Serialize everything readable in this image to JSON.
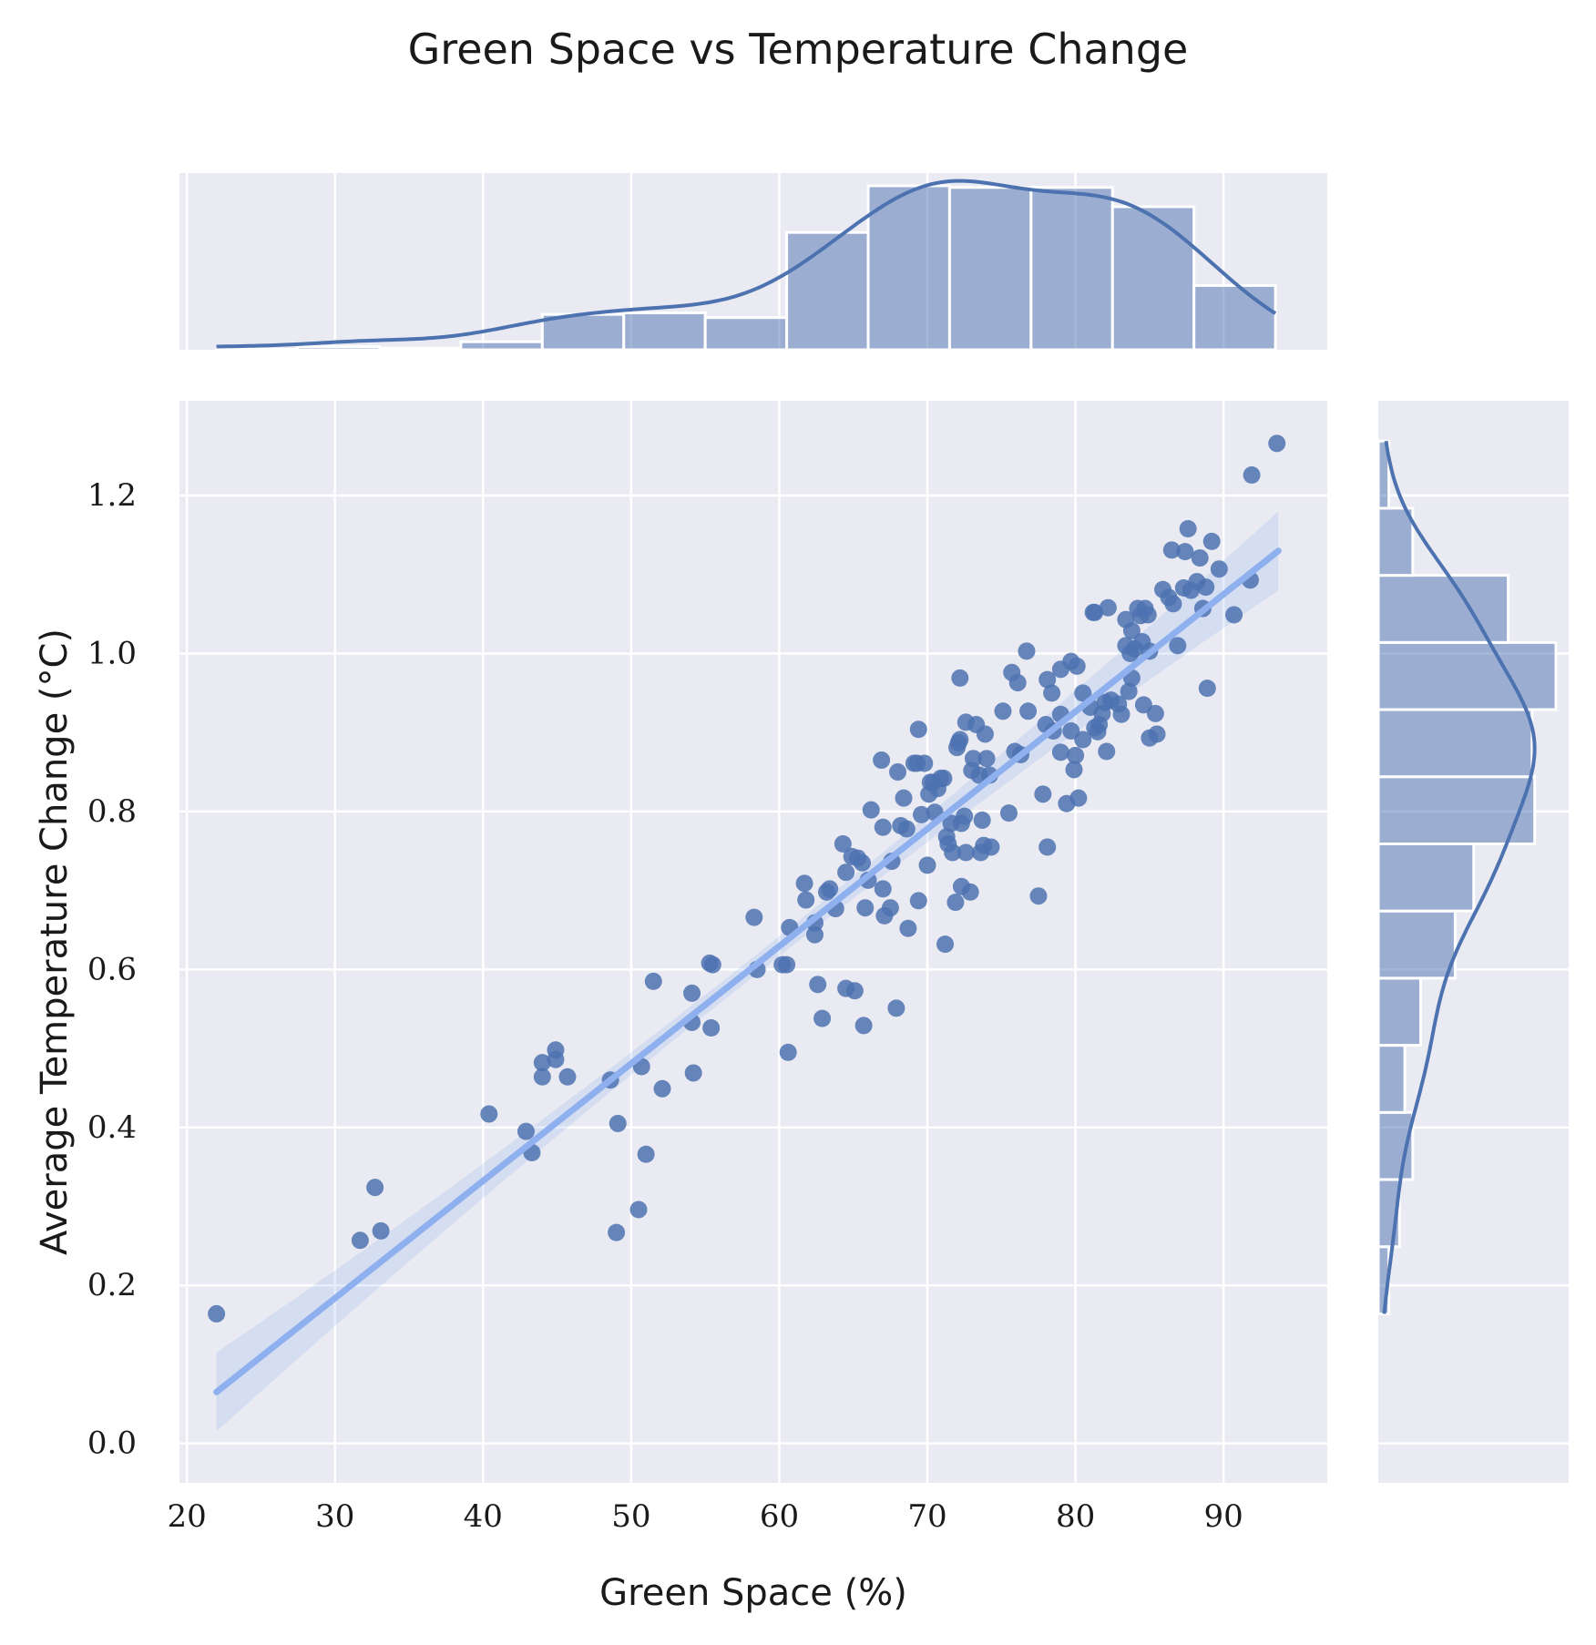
{
  "chart_data": {
    "type": "scatter",
    "title": "Green Space vs Temperature Change",
    "xlabel": "Green Space (%)",
    "ylabel": "Average Temperature Change (°C)",
    "xlim": [
      19.5,
      97
    ],
    "ylim": [
      -0.05,
      1.32
    ],
    "xticks": [
      "20",
      "30",
      "40",
      "50",
      "60",
      "70",
      "80",
      "90"
    ],
    "yticks": [
      "0.0",
      "0.2",
      "0.4",
      "0.6",
      "0.8",
      "1.0",
      "1.2"
    ],
    "grid": true,
    "colors": {
      "points": "#4c72b0",
      "regression": "#8fb0ee",
      "background": "#eaeaf2"
    },
    "regression": {
      "x": [
        22.0,
        93.7
      ],
      "y": [
        0.065,
        1.13
      ],
      "ci_halfwidth_at_ends": 0.05
    },
    "points": [
      [
        22.0,
        0.164
      ],
      [
        31.7,
        0.257
      ],
      [
        32.7,
        0.324
      ],
      [
        33.1,
        0.269
      ],
      [
        40.4,
        0.417
      ],
      [
        42.9,
        0.395
      ],
      [
        43.3,
        0.368
      ],
      [
        44.0,
        0.482
      ],
      [
        44.0,
        0.464
      ],
      [
        44.9,
        0.498
      ],
      [
        44.9,
        0.486
      ],
      [
        45.7,
        0.464
      ],
      [
        48.6,
        0.46
      ],
      [
        49.1,
        0.405
      ],
      [
        49.0,
        0.267
      ],
      [
        50.5,
        0.296
      ],
      [
        50.7,
        0.477
      ],
      [
        51.0,
        0.366
      ],
      [
        51.5,
        0.585
      ],
      [
        52.1,
        0.449
      ],
      [
        54.1,
        0.57
      ],
      [
        54.1,
        0.533
      ],
      [
        54.2,
        0.469
      ],
      [
        55.3,
        0.608
      ],
      [
        55.5,
        0.606
      ],
      [
        55.4,
        0.526
      ],
      [
        58.3,
        0.666
      ],
      [
        58.5,
        0.6
      ],
      [
        60.2,
        0.606
      ],
      [
        60.5,
        0.606
      ],
      [
        60.6,
        0.495
      ],
      [
        60.7,
        0.653
      ],
      [
        61.7,
        0.709
      ],
      [
        61.8,
        0.688
      ],
      [
        62.4,
        0.644
      ],
      [
        62.4,
        0.659
      ],
      [
        62.6,
        0.581
      ],
      [
        62.9,
        0.538
      ],
      [
        63.2,
        0.698
      ],
      [
        63.4,
        0.702
      ],
      [
        63.8,
        0.677
      ],
      [
        64.3,
        0.759
      ],
      [
        64.5,
        0.723
      ],
      [
        64.5,
        0.576
      ],
      [
        64.9,
        0.743
      ],
      [
        65.1,
        0.573
      ],
      [
        65.3,
        0.741
      ],
      [
        65.6,
        0.735
      ],
      [
        65.7,
        0.529
      ],
      [
        65.8,
        0.678
      ],
      [
        66.0,
        0.713
      ],
      [
        66.2,
        0.802
      ],
      [
        66.9,
        0.865
      ],
      [
        67.0,
        0.78
      ],
      [
        67.0,
        0.702
      ],
      [
        67.1,
        0.668
      ],
      [
        67.5,
        0.678
      ],
      [
        67.6,
        0.737
      ],
      [
        67.9,
        0.551
      ],
      [
        68.0,
        0.85
      ],
      [
        68.2,
        0.782
      ],
      [
        68.4,
        0.817
      ],
      [
        68.6,
        0.778
      ],
      [
        68.7,
        0.652
      ],
      [
        69.1,
        0.861
      ],
      [
        69.3,
        0.861
      ],
      [
        69.4,
        0.904
      ],
      [
        69.4,
        0.687
      ],
      [
        69.6,
        0.796
      ],
      [
        69.8,
        0.861
      ],
      [
        70.0,
        0.732
      ],
      [
        70.1,
        0.822
      ],
      [
        70.2,
        0.837
      ],
      [
        70.4,
        0.837
      ],
      [
        70.5,
        0.799
      ],
      [
        70.7,
        0.829
      ],
      [
        70.9,
        0.842
      ],
      [
        71.1,
        0.842
      ],
      [
        71.2,
        0.632
      ],
      [
        71.3,
        0.768
      ],
      [
        71.4,
        0.759
      ],
      [
        71.6,
        0.785
      ],
      [
        71.7,
        0.748
      ],
      [
        71.9,
        0.685
      ],
      [
        72.0,
        0.881
      ],
      [
        72.1,
        0.887
      ],
      [
        72.2,
        0.891
      ],
      [
        72.2,
        0.969
      ],
      [
        72.3,
        0.705
      ],
      [
        72.3,
        0.785
      ],
      [
        72.5,
        0.794
      ],
      [
        72.6,
        0.748
      ],
      [
        72.6,
        0.913
      ],
      [
        72.9,
        0.698
      ],
      [
        73.0,
        0.852
      ],
      [
        73.1,
        0.867
      ],
      [
        73.3,
        0.91
      ],
      [
        73.5,
        0.846
      ],
      [
        73.6,
        0.748
      ],
      [
        73.7,
        0.789
      ],
      [
        73.8,
        0.757
      ],
      [
        73.9,
        0.898
      ],
      [
        74.0,
        0.867
      ],
      [
        74.2,
        0.846
      ],
      [
        74.3,
        0.755
      ],
      [
        75.1,
        0.927
      ],
      [
        75.5,
        0.798
      ],
      [
        75.7,
        0.976
      ],
      [
        75.9,
        0.876
      ],
      [
        76.1,
        0.963
      ],
      [
        76.3,
        0.872
      ],
      [
        76.7,
        1.003
      ],
      [
        76.8,
        0.927
      ],
      [
        77.5,
        0.693
      ],
      [
        77.8,
        0.822
      ],
      [
        78.0,
        0.91
      ],
      [
        78.1,
        0.755
      ],
      [
        78.1,
        0.967
      ],
      [
        78.4,
        0.95
      ],
      [
        78.5,
        0.902
      ],
      [
        79.0,
        0.923
      ],
      [
        79.0,
        0.98
      ],
      [
        79.0,
        0.875
      ],
      [
        79.4,
        0.81
      ],
      [
        79.7,
        0.99
      ],
      [
        79.7,
        0.902
      ],
      [
        79.9,
        0.853
      ],
      [
        80.0,
        0.871
      ],
      [
        80.1,
        0.984
      ],
      [
        80.2,
        0.817
      ],
      [
        80.5,
        0.95
      ],
      [
        80.5,
        0.891
      ],
      [
        81.0,
        0.932
      ],
      [
        81.2,
        1.052
      ],
      [
        81.3,
        1.052
      ],
      [
        81.3,
        0.906
      ],
      [
        81.5,
        0.901
      ],
      [
        81.6,
        0.91
      ],
      [
        81.8,
        0.924
      ],
      [
        82.0,
        0.938
      ],
      [
        82.1,
        0.876
      ],
      [
        82.2,
        1.058
      ],
      [
        82.4,
        0.941
      ],
      [
        82.9,
        0.936
      ],
      [
        83.1,
        0.923
      ],
      [
        83.4,
        1.043
      ],
      [
        83.4,
        1.01
      ],
      [
        83.6,
        0.952
      ],
      [
        83.7,
        1.0
      ],
      [
        83.8,
        1.029
      ],
      [
        83.8,
        0.969
      ],
      [
        84.0,
        1.006
      ],
      [
        84.2,
        1.057
      ],
      [
        84.4,
        1.048
      ],
      [
        84.5,
        1.015
      ],
      [
        84.6,
        0.935
      ],
      [
        84.7,
        1.057
      ],
      [
        84.9,
        1.049
      ],
      [
        85.0,
        0.893
      ],
      [
        85.0,
        1.003
      ],
      [
        85.4,
        0.924
      ],
      [
        85.5,
        0.898
      ],
      [
        85.9,
        1.081
      ],
      [
        86.3,
        1.071
      ],
      [
        86.5,
        1.131
      ],
      [
        86.6,
        1.063
      ],
      [
        86.9,
        1.01
      ],
      [
        87.3,
        1.083
      ],
      [
        87.4,
        1.129
      ],
      [
        87.6,
        1.158
      ],
      [
        87.8,
        1.08
      ],
      [
        88.2,
        1.091
      ],
      [
        88.4,
        1.121
      ],
      [
        88.6,
        1.057
      ],
      [
        88.8,
        1.084
      ],
      [
        88.9,
        0.956
      ],
      [
        89.2,
        1.142
      ],
      [
        89.7,
        1.107
      ],
      [
        90.7,
        1.049
      ],
      [
        91.8,
        1.093
      ],
      [
        91.9,
        1.226
      ],
      [
        93.6,
        1.266
      ]
    ],
    "x_hist": {
      "bin_width": 5.5,
      "start": 22.0,
      "counts": [
        0.3,
        2,
        1,
        5,
        22,
        23,
        20,
        73,
        102,
        101,
        101,
        89,
        40
      ]
    },
    "y_hist": {
      "bin_width": 0.085,
      "start": 0.164,
      "counts": [
        4,
        8,
        13,
        10,
        16,
        29,
        36,
        59,
        58,
        67,
        49,
        13,
        4
      ]
    }
  }
}
